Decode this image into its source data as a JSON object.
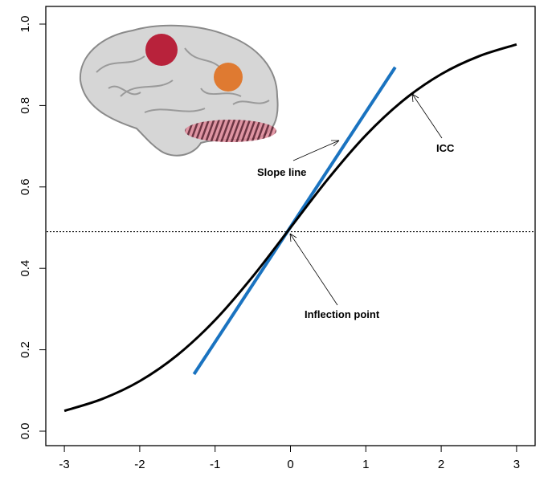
{
  "chart_data": {
    "type": "line",
    "title": "",
    "xlabel": "",
    "ylabel": "",
    "xlim": [
      -3,
      3
    ],
    "ylim": [
      0,
      1
    ],
    "grid": false,
    "x_ticks": [
      "-3",
      "-2",
      "-1",
      "0",
      "1",
      "2",
      "3"
    ],
    "y_ticks": [
      "0.0",
      "0.2",
      "0.4",
      "0.6",
      "0.8",
      "1.0"
    ],
    "series": [
      {
        "color": "#000000",
        "x": [
          -3,
          -2.5,
          -2,
          -1.5,
          -1,
          -0.5,
          0,
          0.5,
          1,
          1.5,
          2,
          2.5,
          3
        ],
        "y": [
          0.05,
          0.079,
          0.123,
          0.187,
          0.273,
          0.38,
          0.5,
          0.62,
          0.727,
          0.813,
          0.877,
          0.921,
          0.95
        ]
      }
    ],
    "slope_line": {
      "color": "#1a73c0",
      "x": [
        -1.28,
        1.39
      ],
      "y": [
        0.14,
        0.894
      ]
    },
    "reference_line": {
      "y": 0.49,
      "style": "dotted",
      "color": "#000000"
    },
    "annotations": [
      {
        "text": "Slope line",
        "arrow_to": [
          0.65,
          0.71
        ]
      },
      {
        "text": "ICC",
        "arrow_to": [
          1.6,
          0.83
        ]
      },
      {
        "text": "Inflection point",
        "arrow_to": [
          0.0,
          0.49
        ]
      }
    ],
    "image_inset": "brain-illustration",
    "colors": {
      "brain": "#d4d4d4",
      "region_red": "#b5122e",
      "region_orange": "#e0701f",
      "region_hatched": "#e08a9a"
    }
  }
}
